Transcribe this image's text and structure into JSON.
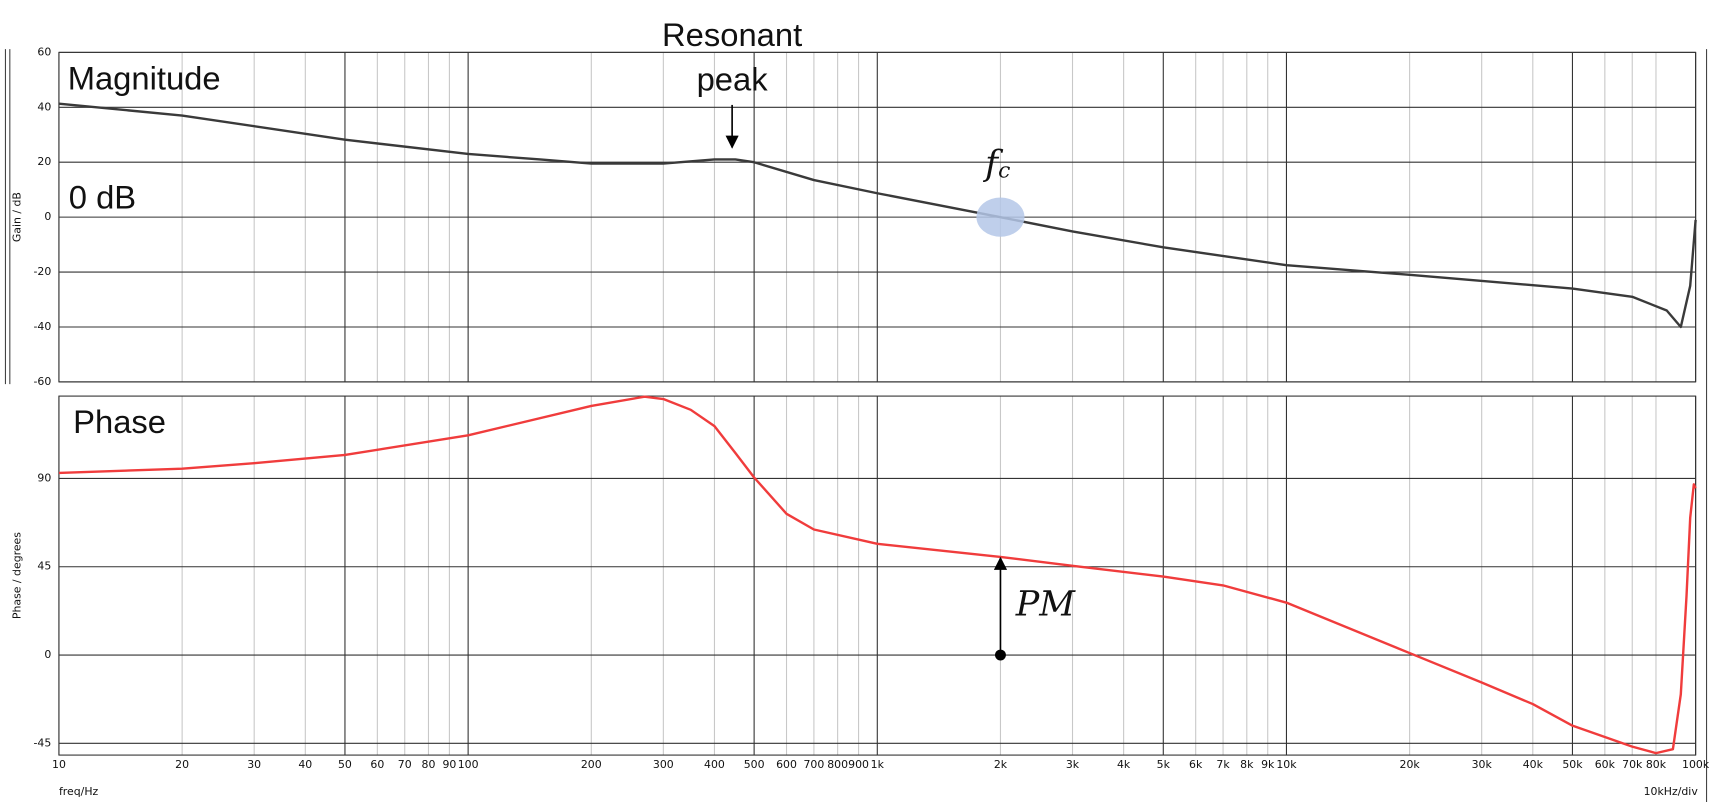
{
  "chart_data": [
    {
      "type": "line",
      "title": "Magnitude",
      "ylabel": "Gain / dB",
      "xscale": "log",
      "xlim": [
        10,
        100000
      ],
      "ylim": [
        -60,
        60
      ],
      "yticks": [
        -60,
        -40,
        -20,
        0,
        20,
        40,
        60
      ],
      "grid": true,
      "color": "#3a3a3a",
      "x": [
        10,
        20,
        50,
        100,
        150,
        200,
        300,
        400,
        450,
        500,
        700,
        1000,
        2000,
        3000,
        5000,
        10000,
        20000,
        50000,
        70000,
        85000,
        92000,
        97000,
        100000
      ],
      "values": [
        41.3,
        37,
        28.2,
        23,
        21,
        19.5,
        19.5,
        21,
        21,
        20,
        13.5,
        8.7,
        0,
        -5.2,
        -11,
        -17.5,
        -21,
        -26,
        -29,
        -34,
        -40,
        -25,
        -1
      ],
      "annotations": [
        {
          "text": "Resonant peak",
          "x": 450,
          "y": 21
        },
        {
          "text": "0 dB",
          "y": 0
        },
        {
          "text": {
            "base": "f",
            "sub": "c"
          },
          "x": 2000,
          "y": 0
        }
      ]
    },
    {
      "type": "line",
      "title": "Phase",
      "ylabel": "Phase / degrees",
      "xlabel": "freq/Hz",
      "xnote": "10kHz/div",
      "xscale": "log",
      "xlim": [
        10,
        100000
      ],
      "ylim": [
        -51,
        132
      ],
      "yticks": [
        -45,
        0,
        45,
        90
      ],
      "xticks": [
        10,
        20,
        30,
        40,
        50,
        60,
        70,
        80,
        90,
        100,
        200,
        300,
        400,
        500,
        600,
        700,
        800,
        900,
        {
          "value": 1000,
          "label": "1k"
        },
        {
          "value": 2000,
          "label": "2k"
        },
        {
          "value": 3000,
          "label": "3k"
        },
        {
          "value": 4000,
          "label": "4k"
        },
        {
          "value": 5000,
          "label": "5k"
        },
        {
          "value": 6000,
          "label": "6k"
        },
        {
          "value": 7000,
          "label": "7k"
        },
        {
          "value": 8000,
          "label": "8k"
        },
        {
          "value": 9000,
          "label": "9k"
        },
        {
          "value": 10000,
          "label": "10k"
        },
        {
          "value": 20000,
          "label": "20k"
        },
        {
          "value": 30000,
          "label": "30k"
        },
        {
          "value": 40000,
          "label": "40k"
        },
        {
          "value": 50000,
          "label": "50k"
        },
        {
          "value": 60000,
          "label": "60k"
        },
        {
          "value": 70000,
          "label": "70k"
        },
        {
          "value": 80000,
          "label": "80k"
        },
        {
          "value": 100000,
          "label": "100k"
        }
      ],
      "grid": true,
      "color": "#f03c3c",
      "x": [
        10,
        20,
        30,
        50,
        100,
        200,
        270,
        300,
        350,
        400,
        450,
        500,
        600,
        700,
        1000,
        2000,
        3000,
        5000,
        7000,
        10000,
        20000,
        30000,
        40000,
        50000,
        70000,
        80000,
        88000,
        92000,
        95000,
        97000,
        99000,
        100000
      ],
      "values": [
        92.8,
        95,
        97.8,
        102,
        112,
        127,
        131.7,
        130.5,
        125,
        116.7,
        103,
        90.5,
        72,
        64,
        56.7,
        50,
        45.5,
        40,
        35.5,
        26.7,
        1,
        -14,
        -25,
        -36,
        -46.7,
        -50,
        -48,
        -20,
        30,
        70,
        87,
        85
      ],
      "annotations": [
        {
          "text": "PM",
          "x": 2000,
          "y": 0,
          "y_end": 50
        }
      ]
    }
  ]
}
